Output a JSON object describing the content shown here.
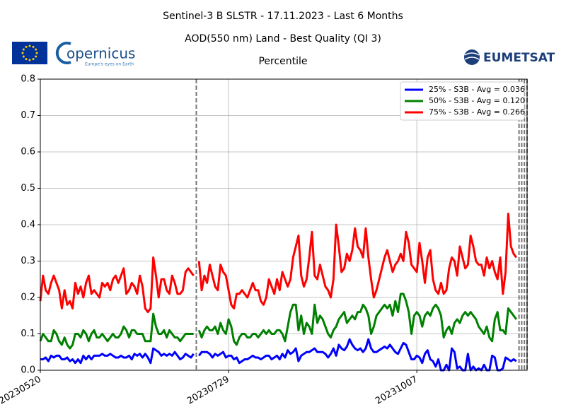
{
  "logos": {
    "copernicus": "opernicus",
    "copernicus_tagline": "Europe's eyes on Earth",
    "eumetsat": "EUMETSAT"
  },
  "chart_data": {
    "type": "line",
    "title": "Sentinel-3 B SLSTR - 17.11.2023 - Last 6 Months",
    "subtitles": [
      "AOD(550 nm) Land - Best Quality (QI 3)",
      "Percentile"
    ],
    "x": [
      "20230520",
      "20230521",
      "20230522",
      "20230523",
      "20230524",
      "20230525",
      "20230526",
      "20230527",
      "20230528",
      "20230529",
      "20230530",
      "20230531",
      "20230601",
      "20230602",
      "20230603",
      "20230604",
      "20230605",
      "20230606",
      "20230607",
      "20230608",
      "20230609",
      "20230610",
      "20230611",
      "20230612",
      "20230613",
      "20230614",
      "20230615",
      "20230616",
      "20230617",
      "20230618",
      "20230619",
      "20230620",
      "20230621",
      "20230622",
      "20230623",
      "20230624",
      "20230625",
      "20230626",
      "20230627",
      "20230628",
      "20230629",
      "20230630",
      "20230701",
      "20230702",
      "20230703",
      "20230704",
      "20230705",
      "20230706",
      "20230707",
      "20230708",
      "20230709",
      "20230710",
      "20230711",
      "20230712",
      "20230713",
      "20230714",
      "20230715",
      "20230716",
      "20230717",
      "20230718",
      "20230719",
      "20230720",
      "20230721",
      "20230722",
      "20230723",
      "20230724",
      "20230725",
      "20230726",
      "20230727",
      "20230728",
      "20230729",
      "20230730",
      "20230731",
      "20230801",
      "20230802",
      "20230803",
      "20230804",
      "20230805",
      "20230806",
      "20230807",
      "20230808",
      "20230809",
      "20230810",
      "20230811",
      "20230812",
      "20230813",
      "20230814",
      "20230815",
      "20230816",
      "20230817",
      "20230818",
      "20230819",
      "20230820",
      "20230821",
      "20230822",
      "20230823",
      "20230824",
      "20230825",
      "20230826",
      "20230827",
      "20230828",
      "20230829",
      "20230830",
      "20230831",
      "20230901",
      "20230902",
      "20230903",
      "20230904",
      "20230905",
      "20230906",
      "20230907",
      "20230908",
      "20230909",
      "20230910",
      "20230911",
      "20230912",
      "20230913",
      "20230914",
      "20230915",
      "20230916",
      "20230917",
      "20230918",
      "20230919",
      "20230920",
      "20230921",
      "20230922",
      "20230923",
      "20230924",
      "20230925",
      "20230926",
      "20230927",
      "20230928",
      "20230929",
      "20230930",
      "20231001",
      "20231002",
      "20231003",
      "20231004",
      "20231005",
      "20231006",
      "20231007",
      "20231008",
      "20231009",
      "20231010",
      "20231011",
      "20231012",
      "20231013",
      "20231014",
      "20231015",
      "20231016",
      "20231017",
      "20231018",
      "20231019",
      "20231020",
      "20231021",
      "20231022",
      "20231023",
      "20231024",
      "20231025",
      "20231026",
      "20231027",
      "20231028",
      "20231029",
      "20231030",
      "20231031",
      "20231101",
      "20231102",
      "20231103",
      "20231104",
      "20231105",
      "20231106",
      "20231107",
      "20231108",
      "20231109",
      "20231110",
      "20231111",
      "20231112",
      "20231113"
    ],
    "series": [
      {
        "name": "25% - S3B - Avg = 0.036",
        "color": "#0000ff",
        "values": [
          0.03,
          0.03,
          0.035,
          0.025,
          0.04,
          0.035,
          0.04,
          0.04,
          0.03,
          0.03,
          0.035,
          0.025,
          0.03,
          0.02,
          0.03,
          0.02,
          0.04,
          0.03,
          0.04,
          0.03,
          0.04,
          0.04,
          0.04,
          0.045,
          0.04,
          0.04,
          0.045,
          0.04,
          0.035,
          0.035,
          0.04,
          0.035,
          0.035,
          0.04,
          0.03,
          0.045,
          0.04,
          0.045,
          0.035,
          0.045,
          0.035,
          0.02,
          0.06,
          0.055,
          0.05,
          0.04,
          0.045,
          0.04,
          0.045,
          0.04,
          0.05,
          0.04,
          0.03,
          0.035,
          0.045,
          0.04,
          0.035,
          0.045,
          null,
          0.04,
          0.05,
          0.05,
          0.05,
          0.045,
          0.035,
          0.045,
          0.04,
          0.045,
          0.05,
          0.035,
          0.04,
          0.04,
          0.03,
          0.035,
          0.02,
          0.025,
          0.03,
          0.03,
          0.035,
          0.04,
          0.035,
          0.035,
          0.03,
          0.035,
          0.04,
          0.04,
          0.03,
          0.035,
          0.04,
          0.03,
          0.045,
          0.035,
          0.055,
          0.045,
          0.05,
          0.06,
          0.025,
          0.04,
          0.045,
          0.05,
          0.05,
          0.055,
          0.06,
          0.05,
          0.05,
          0.05,
          0.045,
          0.035,
          0.045,
          0.06,
          0.04,
          0.07,
          0.06,
          0.055,
          0.065,
          0.085,
          0.07,
          0.06,
          0.055,
          0.06,
          0.05,
          0.06,
          0.085,
          0.06,
          0.05,
          0.05,
          0.055,
          0.06,
          0.065,
          0.06,
          0.07,
          0.06,
          0.05,
          0.045,
          0.06,
          0.075,
          0.07,
          0.05,
          0.03,
          0.03,
          0.04,
          0.035,
          0.02,
          0.045,
          0.055,
          0.03,
          0.025,
          0.01,
          0.03,
          0.0,
          0.0,
          0.015,
          0.0,
          0.06,
          0.05,
          0.005,
          0.01,
          0.0,
          0.0,
          0.045,
          0.0,
          0.01,
          0.0,
          0.005,
          0.0,
          0.015,
          0.0,
          0.0,
          0.04,
          0.035,
          0.0,
          0.0,
          0.005,
          0.035,
          0.03,
          0.025,
          0.03,
          0.025
        ]
      },
      {
        "name": "50% - S3B - Avg = 0.120",
        "color": "#008000",
        "values": [
          0.08,
          0.1,
          0.09,
          0.08,
          0.08,
          0.11,
          0.1,
          0.08,
          0.07,
          0.09,
          0.07,
          0.06,
          0.07,
          0.1,
          0.1,
          0.09,
          0.11,
          0.1,
          0.08,
          0.1,
          0.11,
          0.09,
          0.09,
          0.1,
          0.09,
          0.08,
          0.09,
          0.1,
          0.09,
          0.09,
          0.1,
          0.12,
          0.11,
          0.09,
          0.11,
          0.11,
          0.1,
          0.1,
          0.1,
          0.08,
          0.08,
          0.08,
          0.155,
          0.12,
          0.1,
          0.1,
          0.11,
          0.09,
          0.11,
          0.1,
          0.09,
          0.09,
          0.08,
          0.09,
          0.1,
          0.1,
          0.1,
          0.1,
          null,
          0.11,
          0.09,
          0.11,
          0.12,
          0.11,
          0.11,
          0.12,
          0.1,
          0.13,
          0.11,
          0.1,
          0.14,
          0.12,
          0.08,
          0.07,
          0.09,
          0.1,
          0.1,
          0.09,
          0.09,
          0.1,
          0.1,
          0.09,
          0.1,
          0.11,
          0.1,
          0.11,
          0.1,
          0.1,
          0.11,
          0.11,
          0.1,
          0.08,
          0.12,
          0.16,
          0.18,
          0.18,
          0.11,
          0.15,
          0.1,
          0.13,
          0.12,
          0.1,
          0.18,
          0.13,
          0.15,
          0.14,
          0.12,
          0.1,
          0.09,
          0.11,
          0.12,
          0.14,
          0.15,
          0.16,
          0.13,
          0.14,
          0.15,
          0.14,
          0.16,
          0.16,
          0.18,
          0.17,
          0.15,
          0.1,
          0.12,
          0.15,
          0.16,
          0.17,
          0.18,
          0.17,
          0.18,
          0.15,
          0.19,
          0.16,
          0.21,
          0.21,
          0.19,
          0.16,
          0.1,
          0.15,
          0.16,
          0.15,
          0.12,
          0.15,
          0.16,
          0.15,
          0.17,
          0.18,
          0.17,
          0.15,
          0.09,
          0.11,
          0.12,
          0.1,
          0.13,
          0.14,
          0.13,
          0.15,
          0.16,
          0.15,
          0.16,
          0.15,
          0.14,
          0.12,
          0.11,
          0.1,
          0.12,
          0.09,
          0.08,
          0.14,
          0.16,
          0.11,
          0.11,
          0.1,
          0.17,
          0.16,
          0.15,
          0.14
        ]
      },
      {
        "name": "75% - S3B - Avg = 0.266",
        "color": "#ff0000",
        "values": [
          0.19,
          0.26,
          0.22,
          0.21,
          0.24,
          0.26,
          0.24,
          0.22,
          0.17,
          0.22,
          0.18,
          0.19,
          0.17,
          0.24,
          0.21,
          0.23,
          0.2,
          0.24,
          0.26,
          0.21,
          0.22,
          0.21,
          0.2,
          0.24,
          0.23,
          0.24,
          0.22,
          0.25,
          0.26,
          0.24,
          0.26,
          0.28,
          0.21,
          0.22,
          0.24,
          0.23,
          0.21,
          0.26,
          0.23,
          0.17,
          0.16,
          0.17,
          0.31,
          0.26,
          0.2,
          0.25,
          0.25,
          0.22,
          0.21,
          0.26,
          0.24,
          0.21,
          0.21,
          0.22,
          0.27,
          0.28,
          0.27,
          0.26,
          null,
          0.3,
          0.22,
          0.26,
          0.24,
          0.29,
          0.26,
          0.23,
          0.22,
          0.29,
          0.27,
          0.26,
          0.22,
          0.18,
          0.17,
          0.21,
          0.21,
          0.22,
          0.21,
          0.2,
          0.22,
          0.24,
          0.22,
          0.22,
          0.19,
          0.18,
          0.2,
          0.25,
          0.23,
          0.21,
          0.25,
          0.22,
          0.27,
          0.25,
          0.23,
          0.25,
          0.31,
          0.34,
          0.37,
          0.26,
          0.23,
          0.25,
          0.31,
          0.38,
          0.26,
          0.25,
          0.29,
          0.26,
          0.23,
          0.22,
          0.2,
          0.25,
          0.4,
          0.34,
          0.27,
          0.28,
          0.32,
          0.3,
          0.33,
          0.39,
          0.34,
          0.33,
          0.31,
          0.39,
          0.31,
          0.25,
          0.2,
          0.22,
          0.25,
          0.28,
          0.31,
          0.33,
          0.3,
          0.27,
          0.29,
          0.3,
          0.32,
          0.3,
          0.38,
          0.35,
          0.29,
          0.28,
          0.27,
          0.35,
          0.3,
          0.24,
          0.31,
          0.33,
          0.25,
          0.22,
          0.21,
          0.24,
          0.21,
          0.22,
          0.28,
          0.31,
          0.3,
          0.26,
          0.34,
          0.31,
          0.28,
          0.29,
          0.37,
          0.34,
          0.3,
          0.29,
          0.29,
          0.26,
          0.31,
          0.28,
          0.3,
          0.27,
          0.25,
          0.31,
          0.21,
          0.27,
          0.43,
          0.34,
          0.32,
          0.31
        ]
      }
    ],
    "xlim": [
      "20230520",
      "20231117"
    ],
    "xticks": [
      "20230520",
      "20230729",
      "20231007"
    ],
    "ylim": [
      0,
      0.8
    ],
    "yticks": [
      {
        "value": 0,
        "label": "0.0"
      },
      0.1,
      0.2,
      0.3,
      0.4,
      0.5,
      0.6,
      0.7,
      0.8
    ],
    "vlines": [
      "20230717",
      "20231114",
      "20231115",
      "20231116",
      "20231117"
    ],
    "grid": true,
    "legend": "upper right"
  }
}
